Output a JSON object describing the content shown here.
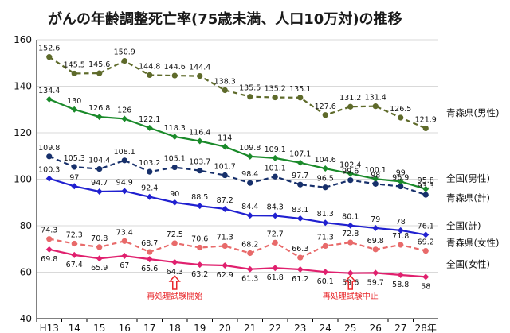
{
  "chart_data": {
    "type": "line",
    "title": "がんの年齢調整死亡率(75歳未満、人口10万対)の推移",
    "xlabel": "",
    "ylabel": "",
    "categories": [
      "H13",
      "14",
      "15",
      "16",
      "17",
      "18",
      "19",
      "20",
      "21",
      "22",
      "23",
      "24",
      "25",
      "26",
      "27",
      "28年"
    ],
    "ylim": [
      40,
      160
    ],
    "yticks": [
      40,
      60,
      80,
      100,
      120,
      140,
      160
    ],
    "grid": true,
    "series": [
      {
        "name": "青森県(男性)",
        "color": "#5e6a2a",
        "dash": "6,4",
        "marker": "circle",
        "label_pos": "above",
        "values": [
          152.6,
          145.5,
          145.6,
          150.9,
          144.8,
          144.6,
          144.4,
          138.3,
          135.5,
          135.2,
          135.1,
          127.6,
          131.2,
          131.4,
          126.5,
          121.9
        ]
      },
      {
        "name": "全国(男性)",
        "color": "#1a8a2a",
        "dash": "",
        "marker": "diamond",
        "label_pos": "above",
        "values": [
          134.4,
          130.0,
          126.8,
          126.0,
          122.1,
          118.3,
          116.4,
          114.0,
          109.8,
          109.1,
          107.1,
          104.6,
          102.4,
          100.1,
          99.0,
          95.8
        ]
      },
      {
        "name": "青森県(計)",
        "color": "#17306b",
        "dash": "6,4",
        "marker": "circle",
        "label_pos": "above",
        "values": [
          109.8,
          105.3,
          104.4,
          108.1,
          103.2,
          105.1,
          103.7,
          101.7,
          98.4,
          101.1,
          97.7,
          96.5,
          99.6,
          98.0,
          96.9,
          93.3
        ]
      },
      {
        "name": "全国(計)",
        "color": "#2020d0",
        "dash": "",
        "marker": "diamond",
        "label_pos": "above",
        "values": [
          100.3,
          97.0,
          94.7,
          94.9,
          92.4,
          90.0,
          88.5,
          87.2,
          84.4,
          84.3,
          83.1,
          81.3,
          80.1,
          79.0,
          78.0,
          76.1
        ]
      },
      {
        "name": "青森県(女性)",
        "color": "#e86a6a",
        "dash": "6,4",
        "marker": "circle",
        "label_pos": "above",
        "values": [
          74.3,
          72.3,
          70.8,
          73.4,
          68.7,
          72.5,
          70.6,
          71.3,
          68.2,
          72.7,
          66.3,
          71.3,
          72.8,
          69.8,
          71.8,
          69.2
        ]
      },
      {
        "name": "全国(女性)",
        "color": "#e0206e",
        "dash": "",
        "marker": "diamond",
        "label_pos": "below",
        "values": [
          69.8,
          67.4,
          65.9,
          67.0,
          65.6,
          64.3,
          63.2,
          62.9,
          61.3,
          61.8,
          61.2,
          60.1,
          59.6,
          59.7,
          58.8,
          58.0
        ]
      }
    ],
    "annotations": [
      {
        "text": "再処理試験開始",
        "category": "18"
      },
      {
        "text": "再処理試験中止",
        "category": "25"
      }
    ]
  }
}
